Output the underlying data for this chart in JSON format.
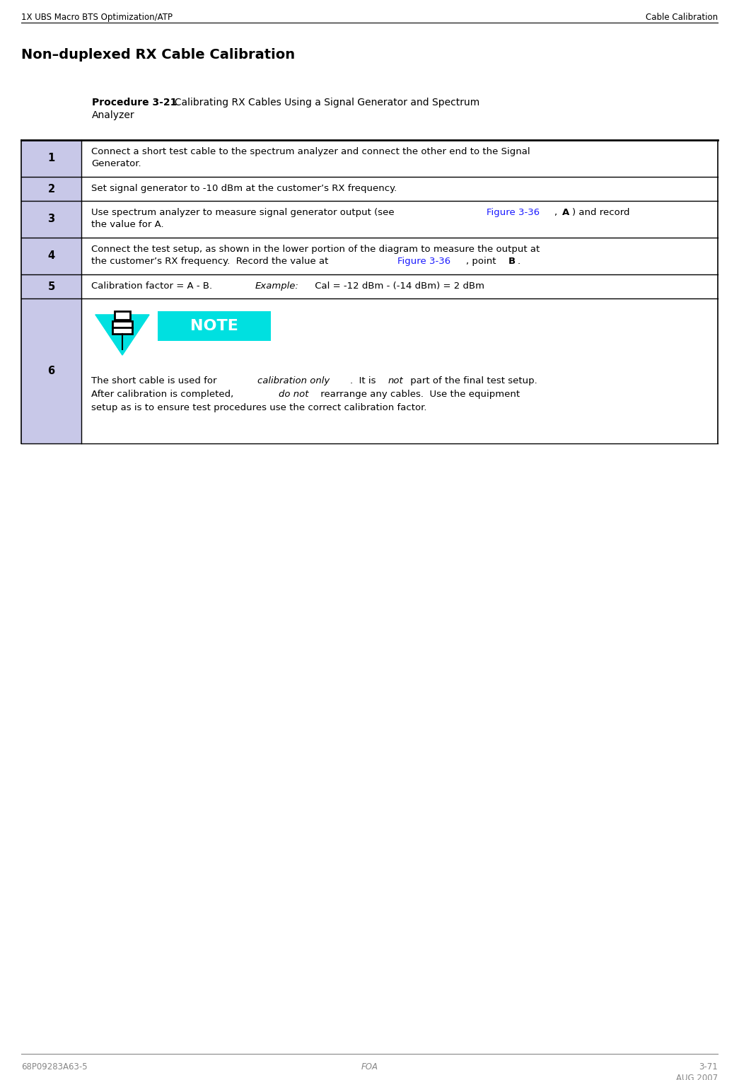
{
  "header_left": "1X UBS Macro BTS Optimization/ATP",
  "header_right": "Cable Calibration",
  "section_title": "Non–duplexed RX Cable Calibration",
  "footer_left": "68P09283A63-5",
  "footer_center": "FOA",
  "footer_right_top": "3-71",
  "footer_right_bottom": "AUG 2007",
  "bg_color": "#ffffff",
  "num_col_color": "#c8c8e8",
  "note_bg_color": "#00e0e0",
  "link_color": "#1a1aff"
}
